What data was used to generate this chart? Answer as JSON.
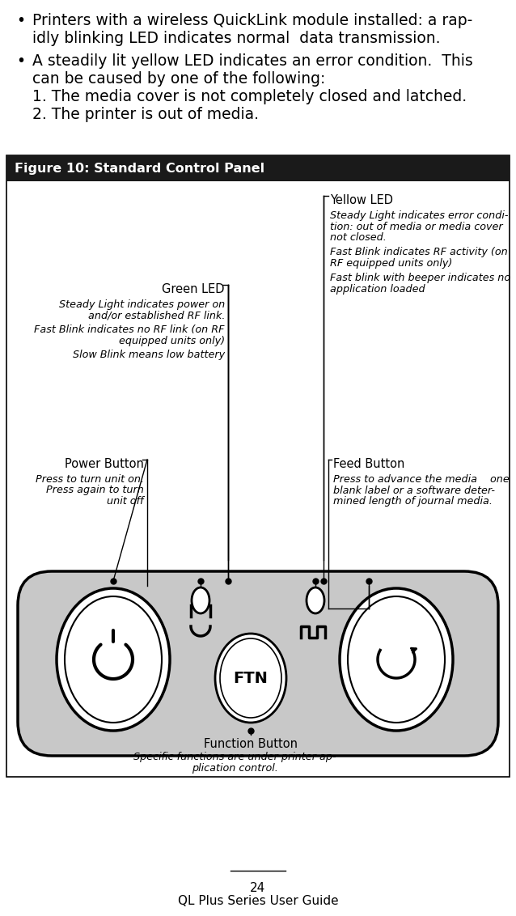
{
  "bg_color": "#ffffff",
  "bullet1_line1": "Printers with a wireless QuickLink module installed: a rap-",
  "bullet1_line2": "idly blinking LED indicates normal  data transmission.",
  "bullet2_line1": "A steadily lit yellow LED indicates an error condition.  This",
  "bullet2_line2": "can be caused by one of the following:",
  "bullet2_line3": "1. The media cover is not completely closed and latched.",
  "bullet2_line4": "2. The printer is out of media.",
  "figure_title": "Figure 10: Standard Control Panel",
  "figure_title_bg": "#1a1a1a",
  "figure_title_color": "#ffffff",
  "panel_bg": "#c8c8c8",
  "label_yellow_led": "Yellow LED",
  "label_yellow_led_desc1": "Steady Light indicates error condi-",
  "label_yellow_led_desc2": "tion: out of media or media cover",
  "label_yellow_led_desc3": "not closed.",
  "label_yellow_led_desc4": "Fast Blink indicates RF activity (on",
  "label_yellow_led_desc5": "RF equipped units only)",
  "label_yellow_led_desc6": "Fast blink with beeper indicates no",
  "label_yellow_led_desc7": "application loaded",
  "label_green_led": "Green LED",
  "label_green_led_desc1": "Steady Light indicates power on",
  "label_green_led_desc2": "and/or established RF link.",
  "label_green_led_desc3": "Fast Blink indicates no RF link (on RF",
  "label_green_led_desc4": "equipped units only)",
  "label_green_led_desc5": "Slow Blink means low battery",
  "label_power_btn": "Power Button",
  "label_power_btn_desc1": "Press to turn unit on.",
  "label_power_btn_desc2": "Press again to turn",
  "label_power_btn_desc3": "unit off",
  "label_feed_btn": "Feed Button",
  "label_feed_btn_desc1": "Press to advance the media    one",
  "label_feed_btn_desc2": "blank label or a software deter-",
  "label_feed_btn_desc3": "mined length of journal media.",
  "label_func_btn": "Function Button",
  "label_func_btn_desc1": "Specific functions are under printer ap-",
  "label_func_btn_desc2": "plication control.",
  "page_number": "24",
  "footer_text": "QL Plus Series User Guide"
}
